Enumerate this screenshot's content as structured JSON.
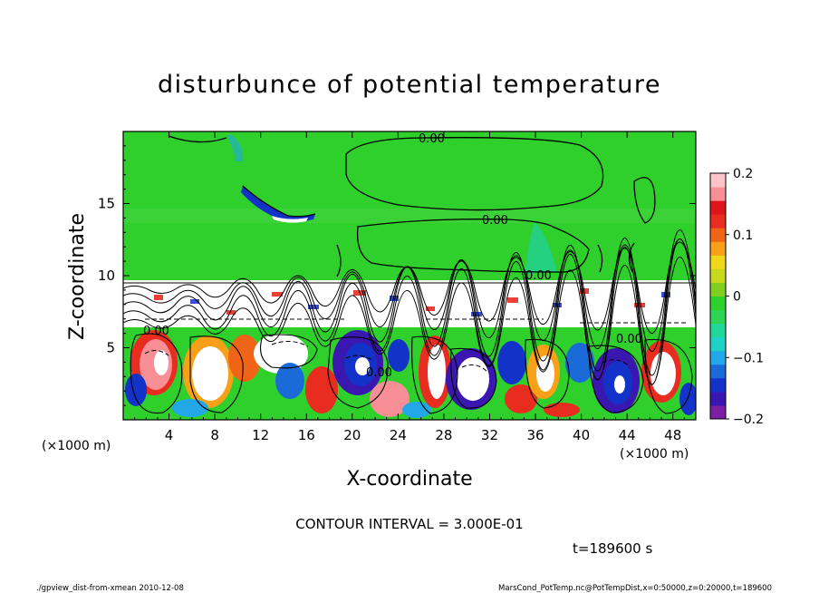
{
  "chart_data": {
    "type": "heatmap",
    "title": "disturbunce of potential temperature",
    "xlabel": "X-coordinate",
    "ylabel": "Z-coordinate",
    "x_unit": "(×1000 m)",
    "y_unit": "(×1000 m)",
    "xlim": [
      0,
      50
    ],
    "ylim": [
      0,
      20
    ],
    "x_ticks": [
      4,
      8,
      12,
      16,
      20,
      24,
      28,
      32,
      36,
      40,
      44,
      48
    ],
    "y_ticks": [
      5,
      10,
      15
    ],
    "colorbar": {
      "range": [
        -0.2,
        0.2
      ],
      "tick_labels": [
        "0.2",
        "0.1",
        "0",
        "−0.1",
        "−0.2"
      ],
      "tick_values": [
        0.2,
        0.1,
        0,
        -0.1,
        -0.2
      ],
      "colors": [
        "#7d1fa4",
        "#3a17b0",
        "#1232c8",
        "#1a6ad8",
        "#22a8e8",
        "#1fd2c8",
        "#22d79a",
        "#2fd454",
        "#2fcf2c",
        "#7fd020",
        "#c8d81c",
        "#f0d818",
        "#f8a018",
        "#f06418",
        "#e82c20",
        "#e0141c",
        "#f88e96",
        "#fcc4c8"
      ]
    },
    "contour_labels": [
      {
        "text": "0.00",
        "x": 27,
        "z": 19.7
      },
      {
        "text": "0.00",
        "x": 32.5,
        "z": 15.3
      },
      {
        "text": "0.00",
        "x": 36.8,
        "z": 10.1
      },
      {
        "text": "0.00",
        "x": 2.8,
        "z": 6.0
      },
      {
        "text": "0.00",
        "x": 22.8,
        "z": 3.6
      },
      {
        "text": "0.00",
        "x": 44.7,
        "z": 5.8
      }
    ],
    "contour_interval": "CONTOUR INTERVAL = 3.000E-01",
    "time_label": "t=189600 s"
  },
  "footer": {
    "left": "./gpview_dist-from-xmean  2010-12-08",
    "right": "MarsCond_PotTemp.nc@PotTempDist,x=0:50000,z=0:20000,t=189600"
  }
}
